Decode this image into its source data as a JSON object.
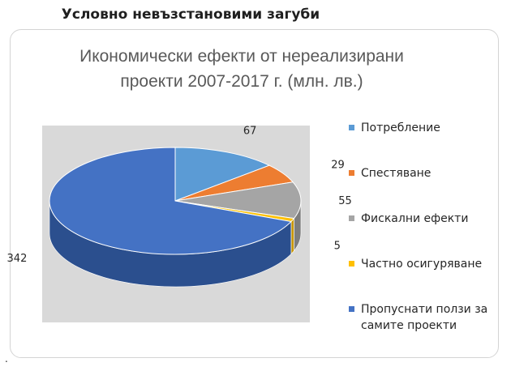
{
  "page": {
    "heading": "Условно невъзстановими загуби",
    "footnote": "."
  },
  "chart_data": {
    "type": "pie",
    "style": "3d",
    "title": "Икономически ефекти от нереализирани проекти 2007-2017 г. (млн. лв.)",
    "title_lines": [
      "Икономически ефекти от нереализирани",
      "проекти 2007-2017 г. (млн. лв.)"
    ],
    "slices": [
      {
        "label": "Потребление",
        "label_lines": [
          "Потребление"
        ],
        "value": 67,
        "color": "#5b9bd5",
        "side_color": "#3f78ad"
      },
      {
        "label": "Спестяване",
        "label_lines": [
          "Спестяване"
        ],
        "value": 29,
        "color": "#ed7d31",
        "side_color": "#b55d22"
      },
      {
        "label": "Фискални ефекти",
        "label_lines": [
          "Фискални ефекти"
        ],
        "value": 55,
        "color": "#a5a5a5",
        "side_color": "#7d7d7d"
      },
      {
        "label": "Частно осигуряване",
        "label_lines": [
          "Частно осигуряване"
        ],
        "value": 5,
        "color": "#ffc000",
        "side_color": "#c79500"
      },
      {
        "label": "Пропуснати ползи за самите проекти",
        "label_lines": [
          "Пропуснати ползи за",
          "самите проекти"
        ],
        "value": 342,
        "color": "#4472c4",
        "side_color": "#2b4f8e"
      }
    ],
    "legend_position": "right",
    "data_labels": true,
    "start_angle_deg": 0,
    "direction": "clockwise"
  }
}
